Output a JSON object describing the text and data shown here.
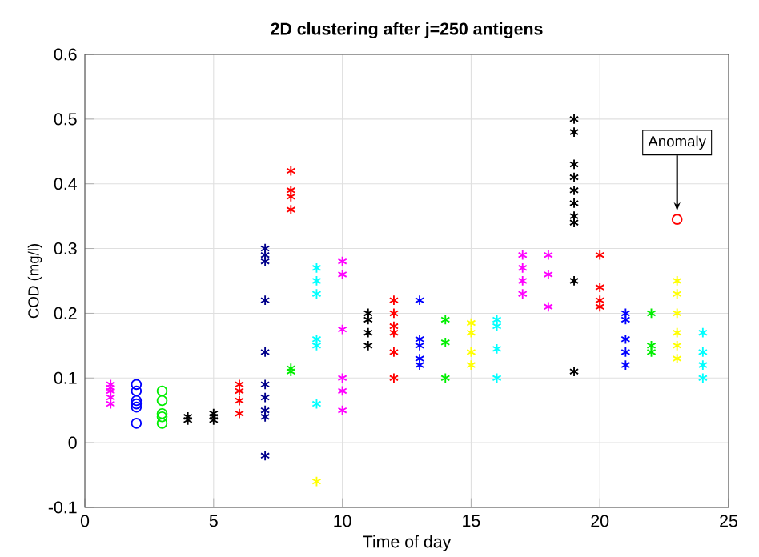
{
  "chart_data": {
    "type": "scatter",
    "title": "2D clustering after j=250 antigens",
    "xlabel": "Time of day",
    "ylabel": "COD (mg/l)",
    "xlim": [
      0,
      25
    ],
    "xticks": [
      0,
      5,
      10,
      15,
      20,
      25
    ],
    "ylim": [
      -0.1,
      0.6
    ],
    "yticks": [
      -0.1,
      0,
      0.1,
      0.2,
      0.3,
      0.4,
      0.5,
      0.6
    ],
    "grid": true,
    "marker": "cross",
    "annotations": [
      {
        "text": "Anomaly",
        "x": 23,
        "y": 0.345
      }
    ],
    "series": [
      {
        "color": "#ff00ff",
        "x": [
          1,
          1,
          1,
          1,
          1
        ],
        "values": [
          0.08,
          0.09,
          0.07,
          0.06,
          0.085
        ]
      },
      {
        "color": "#0000ff",
        "marker": "circle",
        "x": [
          2,
          2,
          2,
          2,
          2,
          2
        ],
        "values": [
          0.09,
          0.08,
          0.06,
          0.03,
          0.065,
          0.055
        ]
      },
      {
        "color": "#00ee00",
        "marker": "circle",
        "x": [
          3,
          3,
          3,
          3,
          3
        ],
        "values": [
          0.08,
          0.065,
          0.045,
          0.03,
          0.04
        ]
      },
      {
        "color": "#000000",
        "x": [
          4,
          4
        ],
        "values": [
          0.035,
          0.04
        ]
      },
      {
        "color": "#000000",
        "x": [
          5,
          5,
          5
        ],
        "values": [
          0.035,
          0.04,
          0.045
        ]
      },
      {
        "color": "#ff0000",
        "x": [
          6,
          6,
          6,
          6
        ],
        "values": [
          0.08,
          0.09,
          0.065,
          0.045
        ]
      },
      {
        "color": "#00008b",
        "x": [
          7,
          7,
          7,
          7,
          7,
          7,
          7,
          7,
          7,
          7
        ],
        "values": [
          0.3,
          0.29,
          0.28,
          0.22,
          0.14,
          0.09,
          0.07,
          0.05,
          0.04,
          -0.02
        ]
      },
      {
        "color": "#ff0000",
        "x": [
          8,
          8,
          8,
          8
        ],
        "values": [
          0.39,
          0.42,
          0.38,
          0.36
        ]
      },
      {
        "color": "#00ee00",
        "x": [
          8,
          8
        ],
        "values": [
          0.11,
          0.115
        ]
      },
      {
        "color": "#00ffff",
        "x": [
          9,
          9,
          9,
          9,
          9,
          9
        ],
        "values": [
          0.23,
          0.27,
          0.25,
          0.16,
          0.15,
          0.06
        ]
      },
      {
        "color": "#ffff00",
        "x": [
          9
        ],
        "values": [
          -0.06
        ]
      },
      {
        "color": "#ff00ff",
        "x": [
          10,
          10,
          10,
          10,
          10,
          10
        ],
        "values": [
          0.175,
          0.28,
          0.26,
          0.08,
          0.05,
          0.1
        ]
      },
      {
        "color": "#000000",
        "x": [
          11,
          11,
          11,
          11
        ],
        "values": [
          0.2,
          0.17,
          0.15,
          0.19
        ]
      },
      {
        "color": "#ff0000",
        "x": [
          12,
          12,
          12,
          12,
          12,
          12
        ],
        "values": [
          0.22,
          0.2,
          0.18,
          0.14,
          0.1,
          0.17
        ]
      },
      {
        "color": "#0000ff",
        "x": [
          13,
          13,
          13,
          13,
          13
        ],
        "values": [
          0.22,
          0.16,
          0.15,
          0.13,
          0.12
        ]
      },
      {
        "color": "#00ee00",
        "x": [
          14,
          14,
          14
        ],
        "values": [
          0.19,
          0.155,
          0.1
        ]
      },
      {
        "color": "#ffff00",
        "x": [
          15,
          15,
          15,
          15
        ],
        "values": [
          0.17,
          0.14,
          0.12,
          0.185
        ]
      },
      {
        "color": "#00ffff",
        "x": [
          16,
          16,
          16,
          16
        ],
        "values": [
          0.18,
          0.19,
          0.145,
          0.1
        ]
      },
      {
        "color": "#ff00ff",
        "x": [
          17,
          17,
          17,
          17
        ],
        "values": [
          0.29,
          0.27,
          0.25,
          0.23
        ]
      },
      {
        "color": "#ff00ff",
        "x": [
          18,
          18,
          18
        ],
        "values": [
          0.26,
          0.29,
          0.21
        ]
      },
      {
        "color": "#000000",
        "x": [
          19,
          19,
          19,
          19,
          19,
          19,
          19,
          19,
          19,
          19
        ],
        "values": [
          0.5,
          0.48,
          0.43,
          0.41,
          0.39,
          0.37,
          0.35,
          0.34,
          0.25,
          0.11
        ]
      },
      {
        "color": "#ff0000",
        "x": [
          20,
          20,
          20,
          20
        ],
        "values": [
          0.29,
          0.24,
          0.22,
          0.21
        ]
      },
      {
        "color": "#0000ff",
        "x": [
          21,
          21,
          21,
          21,
          21
        ],
        "values": [
          0.2,
          0.19,
          0.16,
          0.14,
          0.12
        ]
      },
      {
        "color": "#00ee00",
        "x": [
          22,
          22,
          22
        ],
        "values": [
          0.2,
          0.15,
          0.14
        ]
      },
      {
        "color": "#ffff00",
        "x": [
          23,
          23,
          23,
          23,
          23,
          23
        ],
        "values": [
          0.25,
          0.23,
          0.2,
          0.17,
          0.15,
          0.13
        ]
      },
      {
        "color": "#ff0000",
        "marker": "circle",
        "x": [
          23
        ],
        "values": [
          0.345
        ]
      },
      {
        "color": "#00ffff",
        "x": [
          24,
          24,
          24,
          24
        ],
        "values": [
          0.17,
          0.14,
          0.12,
          0.1
        ]
      }
    ]
  }
}
